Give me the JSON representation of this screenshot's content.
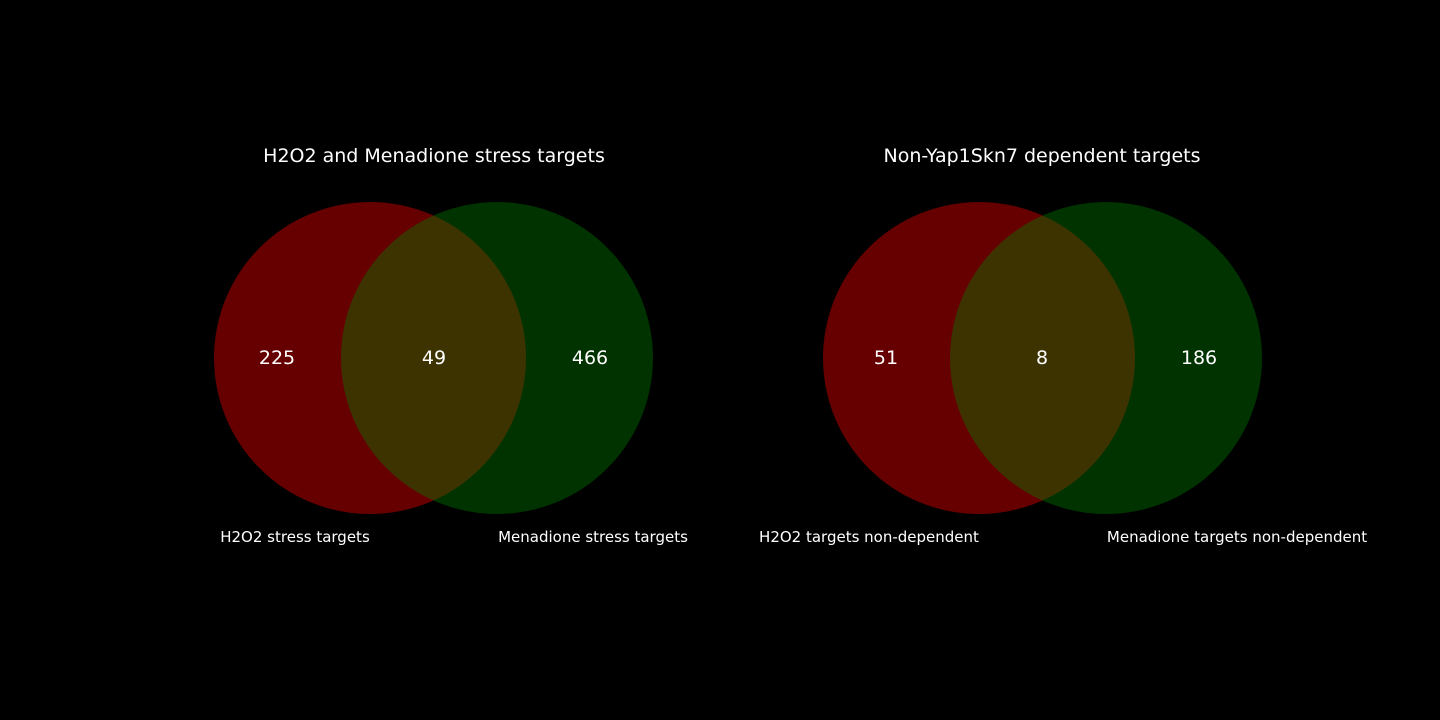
{
  "chart_data": [
    {
      "type": "venn",
      "title": "H2O2 and Menadione stress targets",
      "sets": [
        {
          "label": "H2O2 stress targets",
          "only": 225,
          "color": "#ff0000"
        },
        {
          "label": "Menadione stress targets",
          "only": 466,
          "color": "#008000"
        }
      ],
      "intersection": 49
    },
    {
      "type": "venn",
      "title": "Non-Yap1Skn7 dependent targets",
      "sets": [
        {
          "label": "H2O2 targets non-dependent",
          "only": 51,
          "color": "#ff0000"
        },
        {
          "label": "Menadione targets non-dependent",
          "only": 186,
          "color": "#008000"
        }
      ],
      "intersection": 8
    }
  ],
  "style": {
    "background": "#000000",
    "text_color": "#ffffff",
    "fill_opacity": 0.4
  }
}
